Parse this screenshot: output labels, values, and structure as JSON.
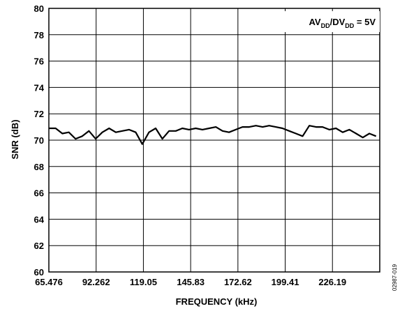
{
  "chart_data": {
    "type": "line",
    "xlabel": "FREQUENCY (kHz)",
    "ylabel": "SNR (dB)",
    "xlim": [
      65.476,
      253.0
    ],
    "ylim": [
      60,
      80
    ],
    "x_ticks": [
      65.476,
      92.262,
      119.05,
      145.83,
      172.62,
      199.41,
      226.19
    ],
    "x_tick_labels": [
      "65.476",
      "92.262",
      "119.05",
      "145.83",
      "172.62",
      "199.41",
      "226.19"
    ],
    "y_ticks": [
      60,
      62,
      64,
      66,
      68,
      70,
      72,
      74,
      76,
      78,
      80
    ],
    "y_tick_labels": [
      "60",
      "62",
      "64",
      "66",
      "68",
      "70",
      "72",
      "74",
      "76",
      "78",
      "80"
    ],
    "grid": true,
    "annotation": {
      "main1": "AV",
      "sub1": "DD",
      "sep": "/DV",
      "sub2": "DD",
      "tail": " = 5V"
    },
    "figure_id": "02987-019",
    "series": [
      {
        "color": "#000000",
        "x": [
          65.476,
          69.3,
          73.1,
          76.8,
          80.6,
          84.4,
          88.2,
          92.0,
          95.8,
          99.6,
          103.4,
          107.1,
          110.9,
          114.7,
          118.4,
          122.2,
          126.0,
          129.8,
          133.6,
          137.4,
          141.1,
          144.9,
          148.7,
          152.5,
          156.3,
          160.1,
          163.9,
          167.6,
          171.4,
          175.2,
          179.0,
          182.8,
          186.6,
          190.3,
          194.1,
          197.9,
          201.7,
          205.5,
          209.3,
          213.1,
          216.9,
          220.6,
          224.4,
          228.2,
          232.0,
          235.8,
          239.6,
          243.4,
          247.1,
          250.9
        ],
        "y": [
          70.9,
          70.9,
          70.5,
          70.6,
          70.1,
          70.3,
          70.7,
          70.1,
          70.6,
          70.9,
          70.6,
          70.7,
          70.8,
          70.6,
          69.7,
          70.6,
          70.9,
          70.1,
          70.7,
          70.7,
          70.9,
          70.8,
          70.9,
          70.8,
          70.9,
          71.0,
          70.7,
          70.6,
          70.8,
          71.0,
          71.0,
          71.1,
          71.0,
          71.1,
          71.0,
          70.9,
          70.7,
          70.5,
          70.3,
          71.1,
          71.0,
          71.0,
          70.8,
          70.9,
          70.6,
          70.8,
          70.5,
          70.2,
          70.5,
          70.3
        ]
      }
    ]
  }
}
